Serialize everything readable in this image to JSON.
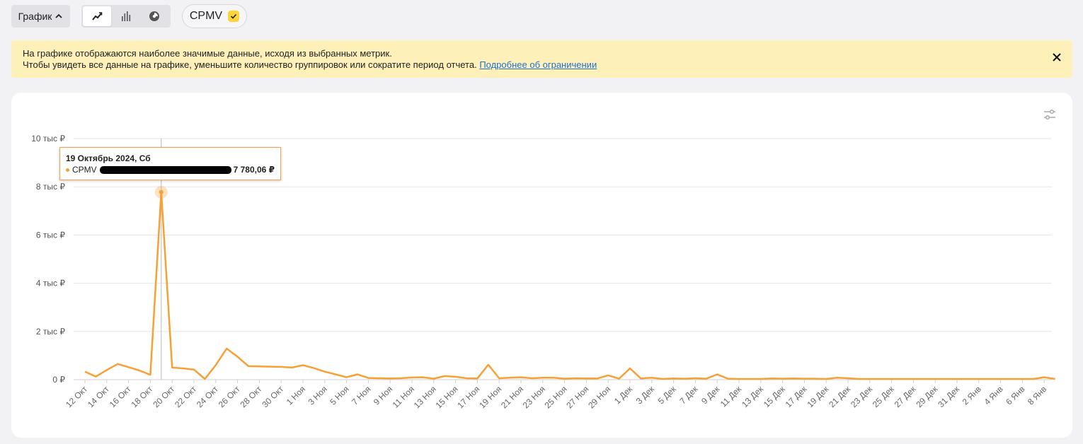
{
  "toolbar": {
    "view_button_label": "График",
    "view_modes": [
      {
        "name": "line",
        "icon": "line-chart-icon",
        "active": true
      },
      {
        "name": "bar",
        "icon": "bar-chart-icon",
        "active": false
      },
      {
        "name": "pie",
        "icon": "pie-chart-icon",
        "active": false
      }
    ],
    "metric_chip_label": "CPMV",
    "metric_checked": true
  },
  "notice": {
    "line1": "На графике отображаются наиболее значимые данные, исходя из выбранных метрик.",
    "line2": "Чтобы увидеть все данные на графике, уменьшите количество группировок или сократите период отчета.",
    "link_text": "Подробнее об ограничении"
  },
  "tooltip": {
    "date": "19 Октябрь 2024, Сб",
    "metric": "CPMV",
    "value": "7 780,06 ₽"
  },
  "colors": {
    "series": "#f7a035",
    "notice_bg": "#fdf1b9",
    "accent_check": "#ffd43b",
    "link": "#1f6fd1"
  },
  "chart_data": {
    "type": "line",
    "title": "",
    "xlabel": "",
    "ylabel": "",
    "ylim": [
      0,
      10000
    ],
    "yticks": [
      {
        "value": 0,
        "label": "0 ₽"
      },
      {
        "value": 2000,
        "label": "2 тыс ₽"
      },
      {
        "value": 4000,
        "label": "4 тыс ₽"
      },
      {
        "value": 6000,
        "label": "6 тыс ₽"
      },
      {
        "value": 8000,
        "label": "8 тыс ₽"
      },
      {
        "value": 10000,
        "label": "10 тыс ₽"
      }
    ],
    "xtick_labels": [
      "12 Окт",
      "14 Окт",
      "16 Окт",
      "18 Окт",
      "20 Окт",
      "22 Окт",
      "24 Окт",
      "26 Окт",
      "28 Окт",
      "30 Окт",
      "1 Ноя",
      "3 Ноя",
      "5 Ноя",
      "7 Ноя",
      "9 Ноя",
      "11 Ноя",
      "13 Ноя",
      "15 Ноя",
      "17 Ноя",
      "19 Ноя",
      "21 Ноя",
      "23 Ноя",
      "25 Ноя",
      "27 Ноя",
      "29 Ноя",
      "1 Дек",
      "3 Дек",
      "5 Дек",
      "7 Дек",
      "9 Дек",
      "11 Дек",
      "13 Дек",
      "15 Дек",
      "17 Дек",
      "19 Дек",
      "21 Дек",
      "23 Дек",
      "25 Дек",
      "27 Дек",
      "29 Дек",
      "31 Дек",
      "2 Янв",
      "4 Янв",
      "6 Янв",
      "8 Янв"
    ],
    "grid": true,
    "series": [
      {
        "name": "CPMV",
        "x": [
          "12 Окт",
          "13 Окт",
          "14 Окт",
          "15 Окт",
          "16 Окт",
          "17 Окт",
          "18 Окт",
          "19 Окт",
          "20 Окт",
          "21 Окт",
          "22 Окт",
          "23 Окт",
          "24 Окт",
          "25 Окт",
          "26 Окт",
          "27 Окт",
          "28 Окт",
          "29 Окт",
          "30 Окт",
          "31 Окт",
          "1 Ноя",
          "2 Ноя",
          "3 Ноя",
          "4 Ноя",
          "5 Ноя",
          "6 Ноя",
          "7 Ноя",
          "8 Ноя",
          "9 Ноя",
          "10 Ноя",
          "11 Ноя",
          "12 Ноя",
          "13 Ноя",
          "14 Ноя",
          "15 Ноя",
          "16 Ноя",
          "17 Ноя",
          "18 Ноя",
          "19 Ноя",
          "20 Ноя",
          "21 Ноя",
          "22 Ноя",
          "23 Ноя",
          "24 Ноя",
          "25 Ноя",
          "26 Ноя",
          "27 Ноя",
          "28 Ноя",
          "29 Ноя",
          "30 Ноя",
          "1 Дек",
          "2 Дек",
          "3 Дек",
          "4 Дек",
          "5 Дек",
          "6 Дек",
          "7 Дек",
          "8 Дек",
          "9 Дек",
          "10 Дек",
          "11 Дек",
          "12 Дек",
          "13 Дек",
          "14 Дек",
          "15 Дек",
          "16 Дек",
          "17 Дек",
          "18 Дек",
          "19 Дек",
          "20 Дек",
          "21 Дек",
          "22 Дек",
          "23 Дек",
          "24 Дек",
          "25 Дек",
          "26 Дек",
          "27 Дек",
          "28 Дек",
          "29 Дек",
          "30 Дек",
          "31 Дек",
          "1 Янв",
          "2 Янв",
          "3 Янв",
          "4 Янв",
          "5 Янв",
          "6 Янв",
          "7 Янв",
          "8 Янв",
          "9 Янв"
        ],
        "values": [
          330,
          130,
          400,
          650,
          520,
          380,
          200,
          7780,
          500,
          470,
          420,
          30,
          600,
          1290,
          950,
          560,
          550,
          540,
          530,
          500,
          600,
          480,
          330,
          220,
          100,
          220,
          70,
          60,
          50,
          60,
          90,
          100,
          40,
          150,
          120,
          60,
          50,
          620,
          60,
          80,
          100,
          60,
          80,
          80,
          40,
          60,
          50,
          50,
          180,
          40,
          470,
          50,
          80,
          30,
          50,
          40,
          60,
          40,
          220,
          40,
          30,
          30,
          30,
          50,
          40,
          50,
          40,
          40,
          30,
          80,
          60,
          30,
          30,
          30,
          30,
          30,
          30,
          30,
          30,
          30,
          30,
          30,
          30,
          30,
          30,
          30,
          30,
          30,
          100,
          30
        ]
      }
    ],
    "highlighted_point": {
      "x": "19 Окт",
      "value": 7780.06
    }
  }
}
